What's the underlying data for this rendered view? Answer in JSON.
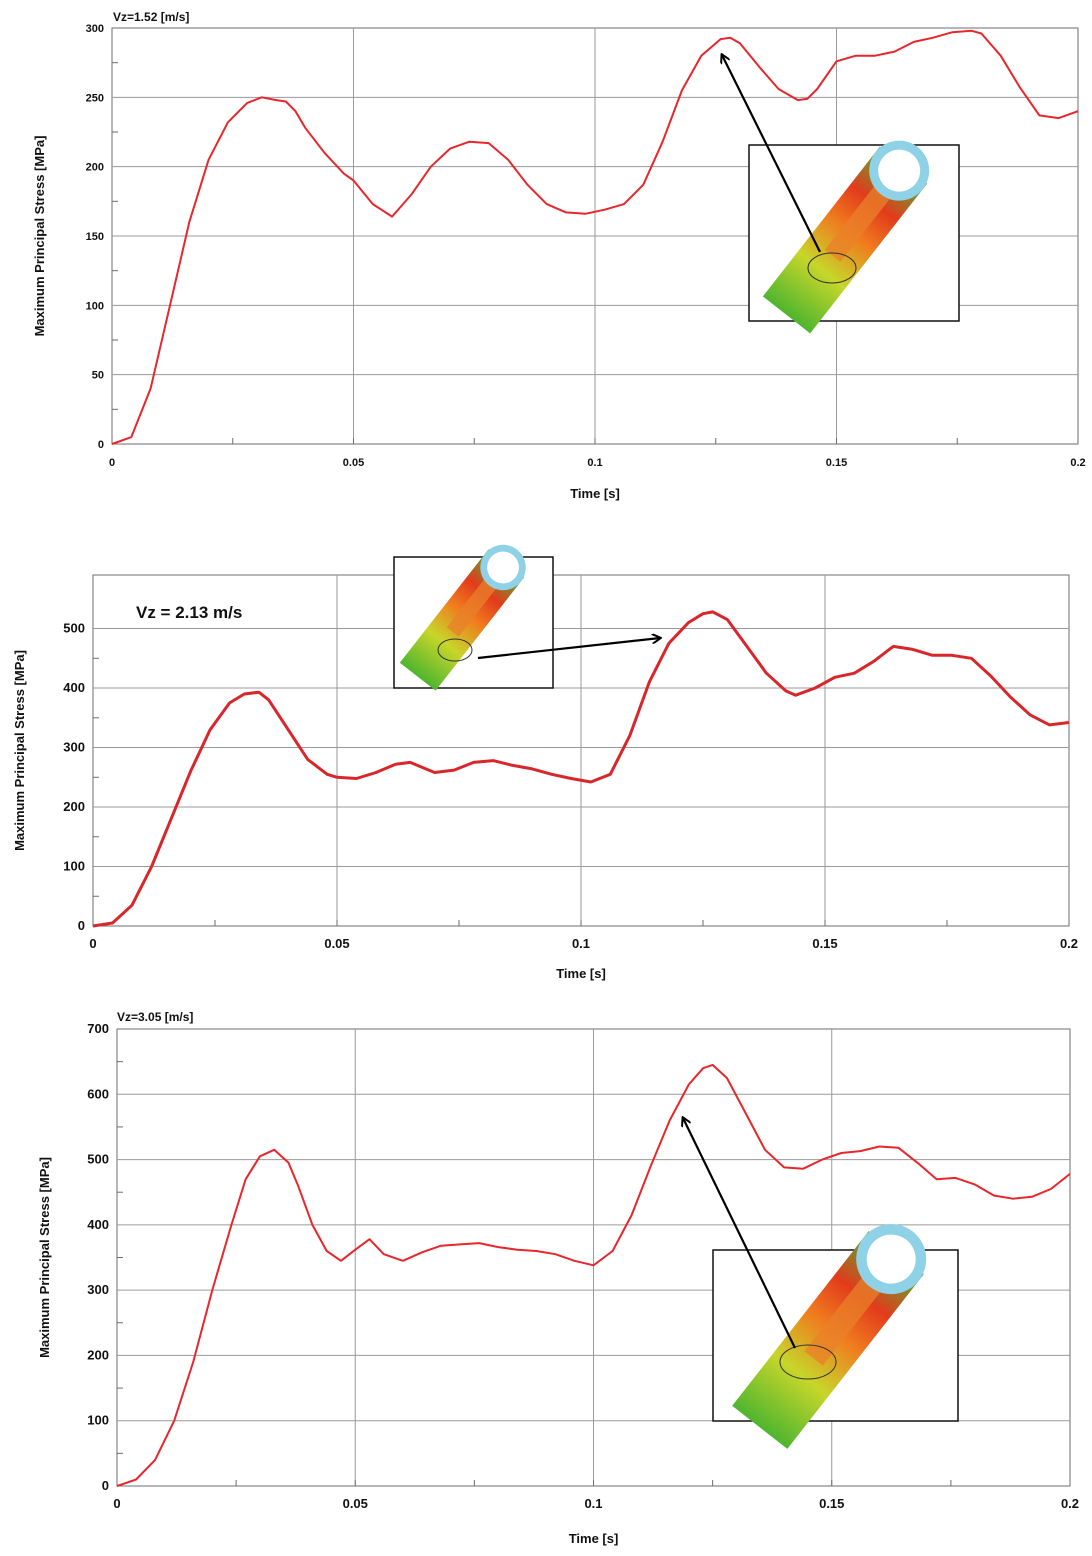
{
  "chart_data": [
    {
      "type": "line",
      "title": "Vz=1.52 [m/s]",
      "xlabel": "Time [s]",
      "ylabel": "Maximum Principal Stress [MPa]",
      "xlim": [
        0,
        0.2
      ],
      "ylim": [
        0,
        300
      ],
      "xticks": [
        "0",
        "0.05",
        "0.1",
        "0.15",
        "0.2"
      ],
      "yticks": [
        "0",
        "50",
        "100",
        "150",
        "200",
        "250",
        "300"
      ],
      "grid": true,
      "line_color": "#e8262b",
      "series": [
        {
          "x": [
            0,
            0.004,
            0.008,
            0.012,
            0.016,
            0.02,
            0.024,
            0.028,
            0.031,
            0.034,
            0.036,
            0.038,
            0.04,
            0.044,
            0.048,
            0.05,
            0.054,
            0.058,
            0.062,
            0.066,
            0.07,
            0.074,
            0.078,
            0.082,
            0.086,
            0.09,
            0.094,
            0.098,
            0.102,
            0.106,
            0.11,
            0.114,
            0.118,
            0.122,
            0.126,
            0.128,
            0.13,
            0.134,
            0.138,
            0.142,
            0.144,
            0.146,
            0.15,
            0.154,
            0.158,
            0.162,
            0.166,
            0.17,
            0.174,
            0.178,
            0.18,
            0.184,
            0.188,
            0.192,
            0.196,
            0.2
          ],
          "y": [
            0,
            5,
            40,
            100,
            160,
            205,
            232,
            246,
            250,
            248,
            247,
            240,
            228,
            210,
            195,
            190,
            173,
            164,
            180,
            200,
            213,
            218,
            217,
            205,
            187,
            173,
            167,
            166,
            169,
            173,
            187,
            218,
            255,
            280,
            292,
            293,
            289,
            272,
            256,
            248,
            249,
            256,
            276,
            280,
            280,
            283,
            290,
            293,
            297,
            298,
            296,
            280,
            257,
            237,
            235,
            240
          ]
        }
      ]
    },
    {
      "type": "line",
      "title": "Vz = 2.13 m/s",
      "xlabel": "Time [s]",
      "ylabel": "Maximum Principal Stress [MPa]",
      "xlim": [
        0,
        0.2
      ],
      "ylim": [
        0,
        590
      ],
      "xticks": [
        "0",
        "0.05",
        "0.1",
        "0.15",
        "0.2"
      ],
      "yticks": [
        "0",
        "100",
        "200",
        "300",
        "400",
        "500"
      ],
      "grid": true,
      "line_color": "#d9262b",
      "series": [
        {
          "x": [
            0,
            0.004,
            0.008,
            0.012,
            0.016,
            0.02,
            0.024,
            0.028,
            0.031,
            0.034,
            0.036,
            0.04,
            0.044,
            0.048,
            0.05,
            0.054,
            0.058,
            0.062,
            0.065,
            0.07,
            0.074,
            0.078,
            0.082,
            0.086,
            0.09,
            0.094,
            0.098,
            0.102,
            0.106,
            0.11,
            0.114,
            0.118,
            0.122,
            0.125,
            0.127,
            0.13,
            0.134,
            0.138,
            0.142,
            0.144,
            0.148,
            0.152,
            0.156,
            0.16,
            0.164,
            0.168,
            0.172,
            0.176,
            0.18,
            0.184,
            0.188,
            0.192,
            0.196,
            0.2
          ],
          "y": [
            0,
            5,
            35,
            100,
            180,
            260,
            330,
            375,
            390,
            393,
            380,
            330,
            280,
            255,
            250,
            248,
            258,
            272,
            275,
            258,
            262,
            275,
            278,
            270,
            264,
            255,
            248,
            242,
            255,
            320,
            410,
            475,
            510,
            525,
            528,
            515,
            470,
            425,
            395,
            388,
            400,
            418,
            425,
            445,
            470,
            465,
            455,
            455,
            450,
            420,
            385,
            355,
            338,
            342
          ]
        }
      ],
      "annotation": {
        "text": "Vz = 2.13 m/s"
      }
    },
    {
      "type": "line",
      "title": "Vz=3.05 [m/s]",
      "xlabel": "Time [s]",
      "ylabel": "Maximum Principal Stress [MPa]",
      "xlim": [
        0,
        0.2
      ],
      "ylim": [
        0,
        700
      ],
      "xticks": [
        "0",
        "0.05",
        "0.1",
        "0.15",
        "0.2"
      ],
      "yticks": [
        "0",
        "100",
        "200",
        "300",
        "400",
        "500",
        "600",
        "700"
      ],
      "grid": true,
      "line_color": "#e8262b",
      "series": [
        {
          "x": [
            0,
            0.004,
            0.008,
            0.012,
            0.016,
            0.02,
            0.024,
            0.027,
            0.03,
            0.033,
            0.036,
            0.038,
            0.041,
            0.044,
            0.047,
            0.05,
            0.053,
            0.056,
            0.06,
            0.064,
            0.068,
            0.072,
            0.076,
            0.08,
            0.084,
            0.088,
            0.092,
            0.096,
            0.1,
            0.104,
            0.108,
            0.112,
            0.116,
            0.12,
            0.123,
            0.125,
            0.128,
            0.132,
            0.136,
            0.14,
            0.144,
            0.148,
            0.152,
            0.156,
            0.16,
            0.164,
            0.168,
            0.172,
            0.176,
            0.18,
            0.184,
            0.188,
            0.192,
            0.196,
            0.2
          ],
          "y": [
            0,
            10,
            40,
            100,
            190,
            300,
            400,
            470,
            505,
            515,
            495,
            460,
            400,
            360,
            345,
            362,
            378,
            355,
            345,
            358,
            368,
            370,
            372,
            366,
            362,
            360,
            355,
            345,
            338,
            360,
            415,
            490,
            560,
            615,
            640,
            645,
            625,
            570,
            515,
            488,
            486,
            500,
            510,
            513,
            520,
            518,
            495,
            470,
            472,
            462,
            445,
            440,
            443,
            455,
            478
          ]
        }
      ]
    }
  ]
}
